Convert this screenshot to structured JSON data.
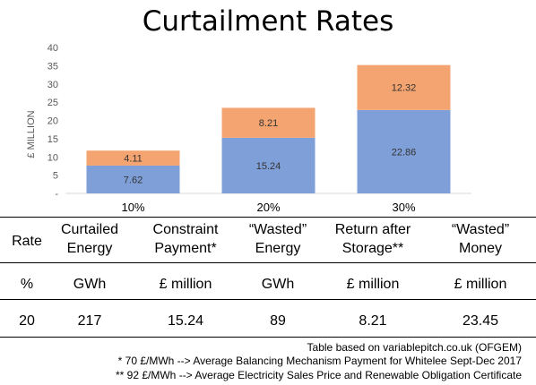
{
  "chart_data": {
    "type": "bar",
    "stacked": true,
    "title": "Curtailment Rates",
    "ylabel": "£ MILLION",
    "xlabel": "",
    "ylim": [
      0,
      40
    ],
    "yticks": [
      "40",
      "35",
      "30",
      "25",
      "20",
      "15",
      "10",
      "5",
      "-"
    ],
    "categories": [
      "10%",
      "20%",
      "30%"
    ],
    "series": [
      {
        "values": [
          7.62,
          15.24,
          22.86
        ],
        "color": "#7f9fd9"
      },
      {
        "values": [
          4.11,
          8.21,
          12.32
        ],
        "color": "#f4a470"
      }
    ],
    "data_labels": [
      [
        "7.62",
        "15.24",
        "22.86"
      ],
      [
        "4.11",
        "8.21",
        "12.32"
      ]
    ],
    "grid": false,
    "legend": "none"
  },
  "table": {
    "headers": [
      [
        "Rate",
        ""
      ],
      [
        "Curtailed",
        "Energy"
      ],
      [
        "Constraint",
        "Payment*"
      ],
      [
        "“Wasted”",
        "Energy"
      ],
      [
        "Return after",
        "Storage**"
      ],
      [
        "“Wasted”",
        "Money"
      ]
    ],
    "units": [
      "%",
      "GWh",
      "£ million",
      "GWh",
      "£ million",
      "£ million"
    ],
    "row": [
      "20",
      "217",
      "15.24",
      "89",
      "8.21",
      "23.45"
    ]
  },
  "notes": {
    "source": "Table based on variablepitch.co.uk (OFGEM)",
    "note1": "*  70 £/MWh --> Average Balancing Mechanism Payment for Whitelee Sept-Dec 2017",
    "note2": "**  92 £/MWh --> Average Electricity Sales Price and Renewable Obligation Certificate"
  }
}
